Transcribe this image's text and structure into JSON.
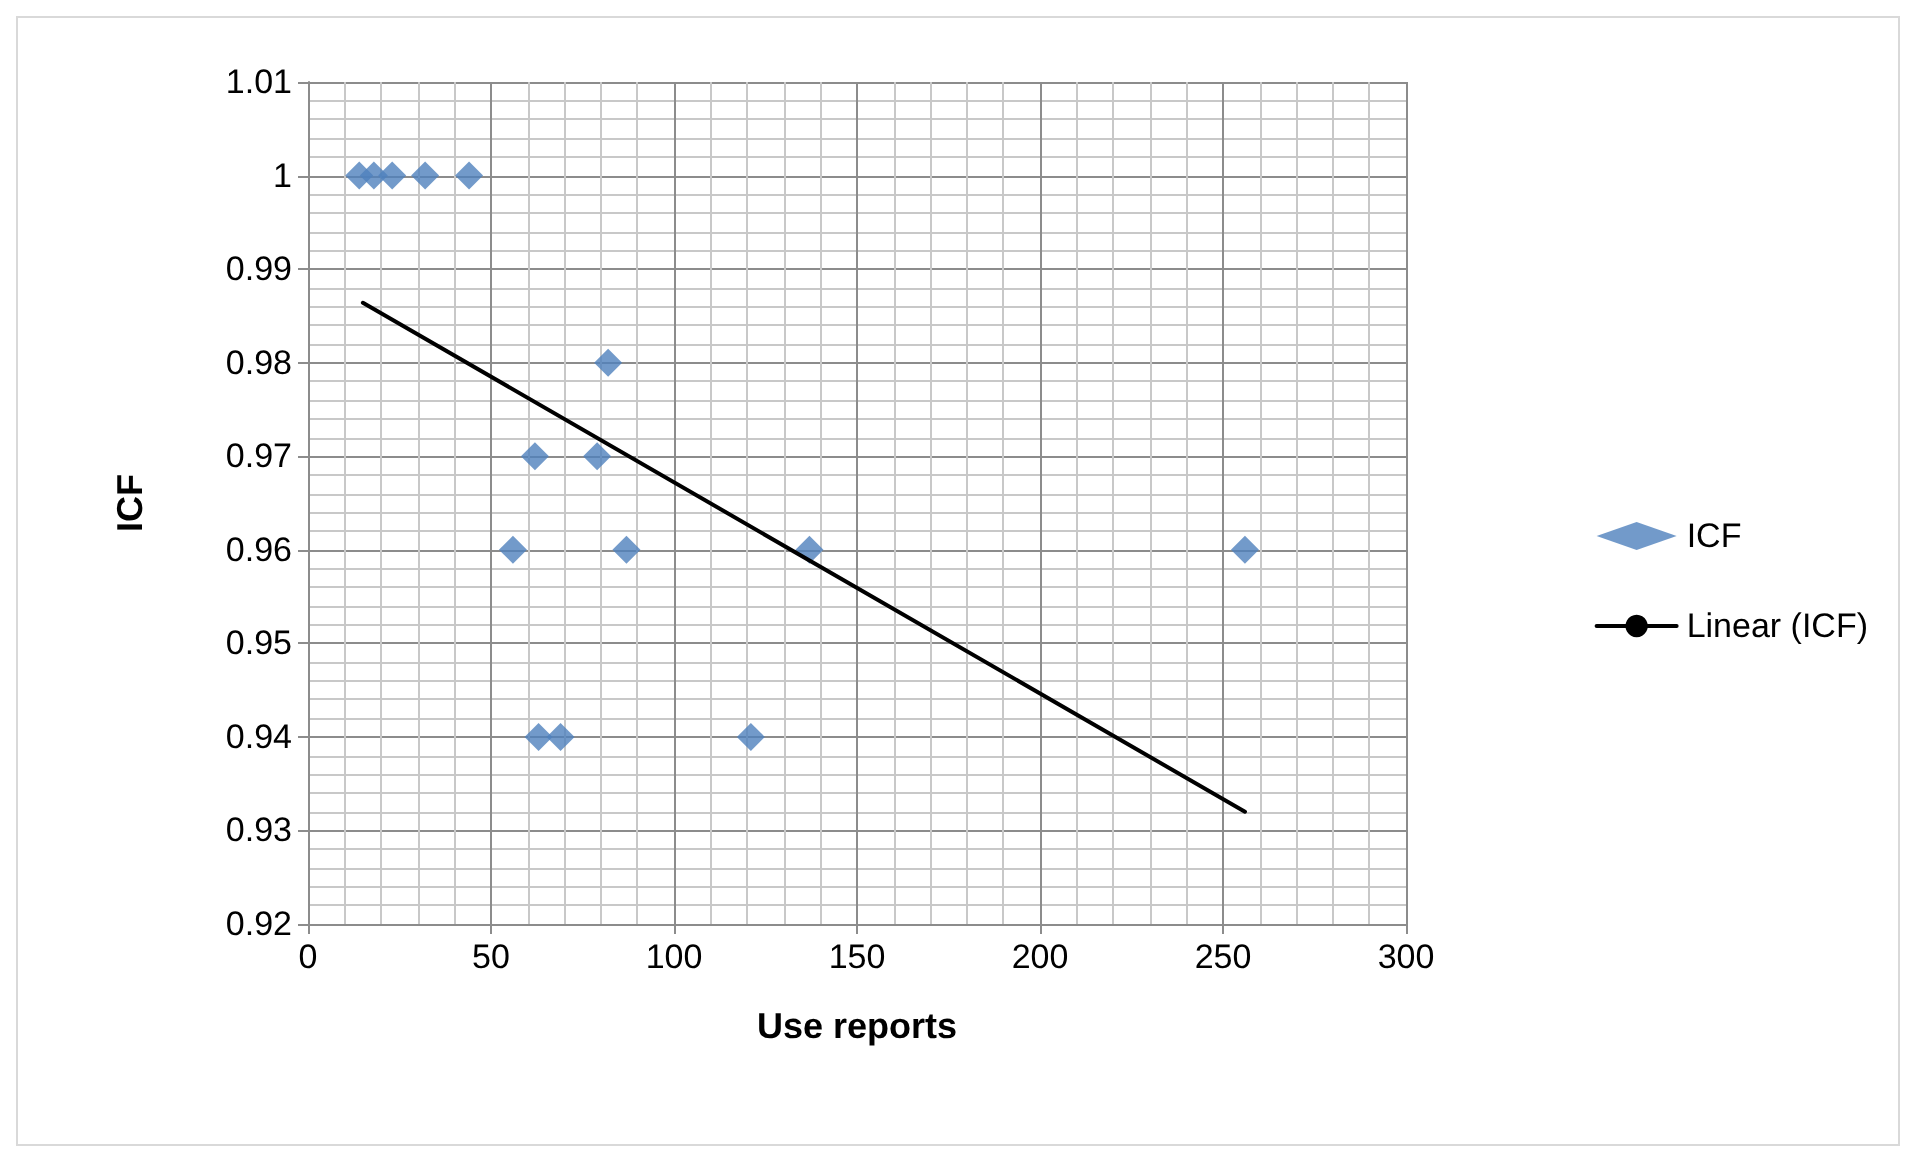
{
  "chart_data": {
    "type": "scatter",
    "xlabel": "Use reports",
    "ylabel": "ICF",
    "xlim": [
      0,
      300
    ],
    "xticks": [
      0,
      50,
      100,
      150,
      200,
      250,
      300
    ],
    "ylim": [
      0.92,
      1.01
    ],
    "yticks": [
      0.92,
      0.93,
      0.94,
      0.95,
      0.96,
      0.97,
      0.98,
      0.99,
      1,
      1.01
    ],
    "grid": true,
    "legend": "right",
    "marker": "diamond",
    "series": [
      {
        "name": "ICF",
        "color": "#4f81bd",
        "x": [
          14,
          18,
          23,
          32,
          44,
          82,
          62,
          79,
          56,
          87,
          137,
          256,
          63,
          69,
          121
        ],
        "values": [
          1,
          1,
          1,
          1,
          1,
          0.98,
          0.97,
          0.97,
          0.96,
          0.96,
          0.96,
          0.96,
          0.94,
          0.94,
          0.94
        ]
      },
      {
        "name": "Linear (ICF)",
        "type": "line",
        "color": "#000000",
        "marker": "none",
        "line_style": "solid",
        "x": [
          15,
          256
        ],
        "values": [
          0.9864,
          0.932
        ]
      }
    ]
  }
}
